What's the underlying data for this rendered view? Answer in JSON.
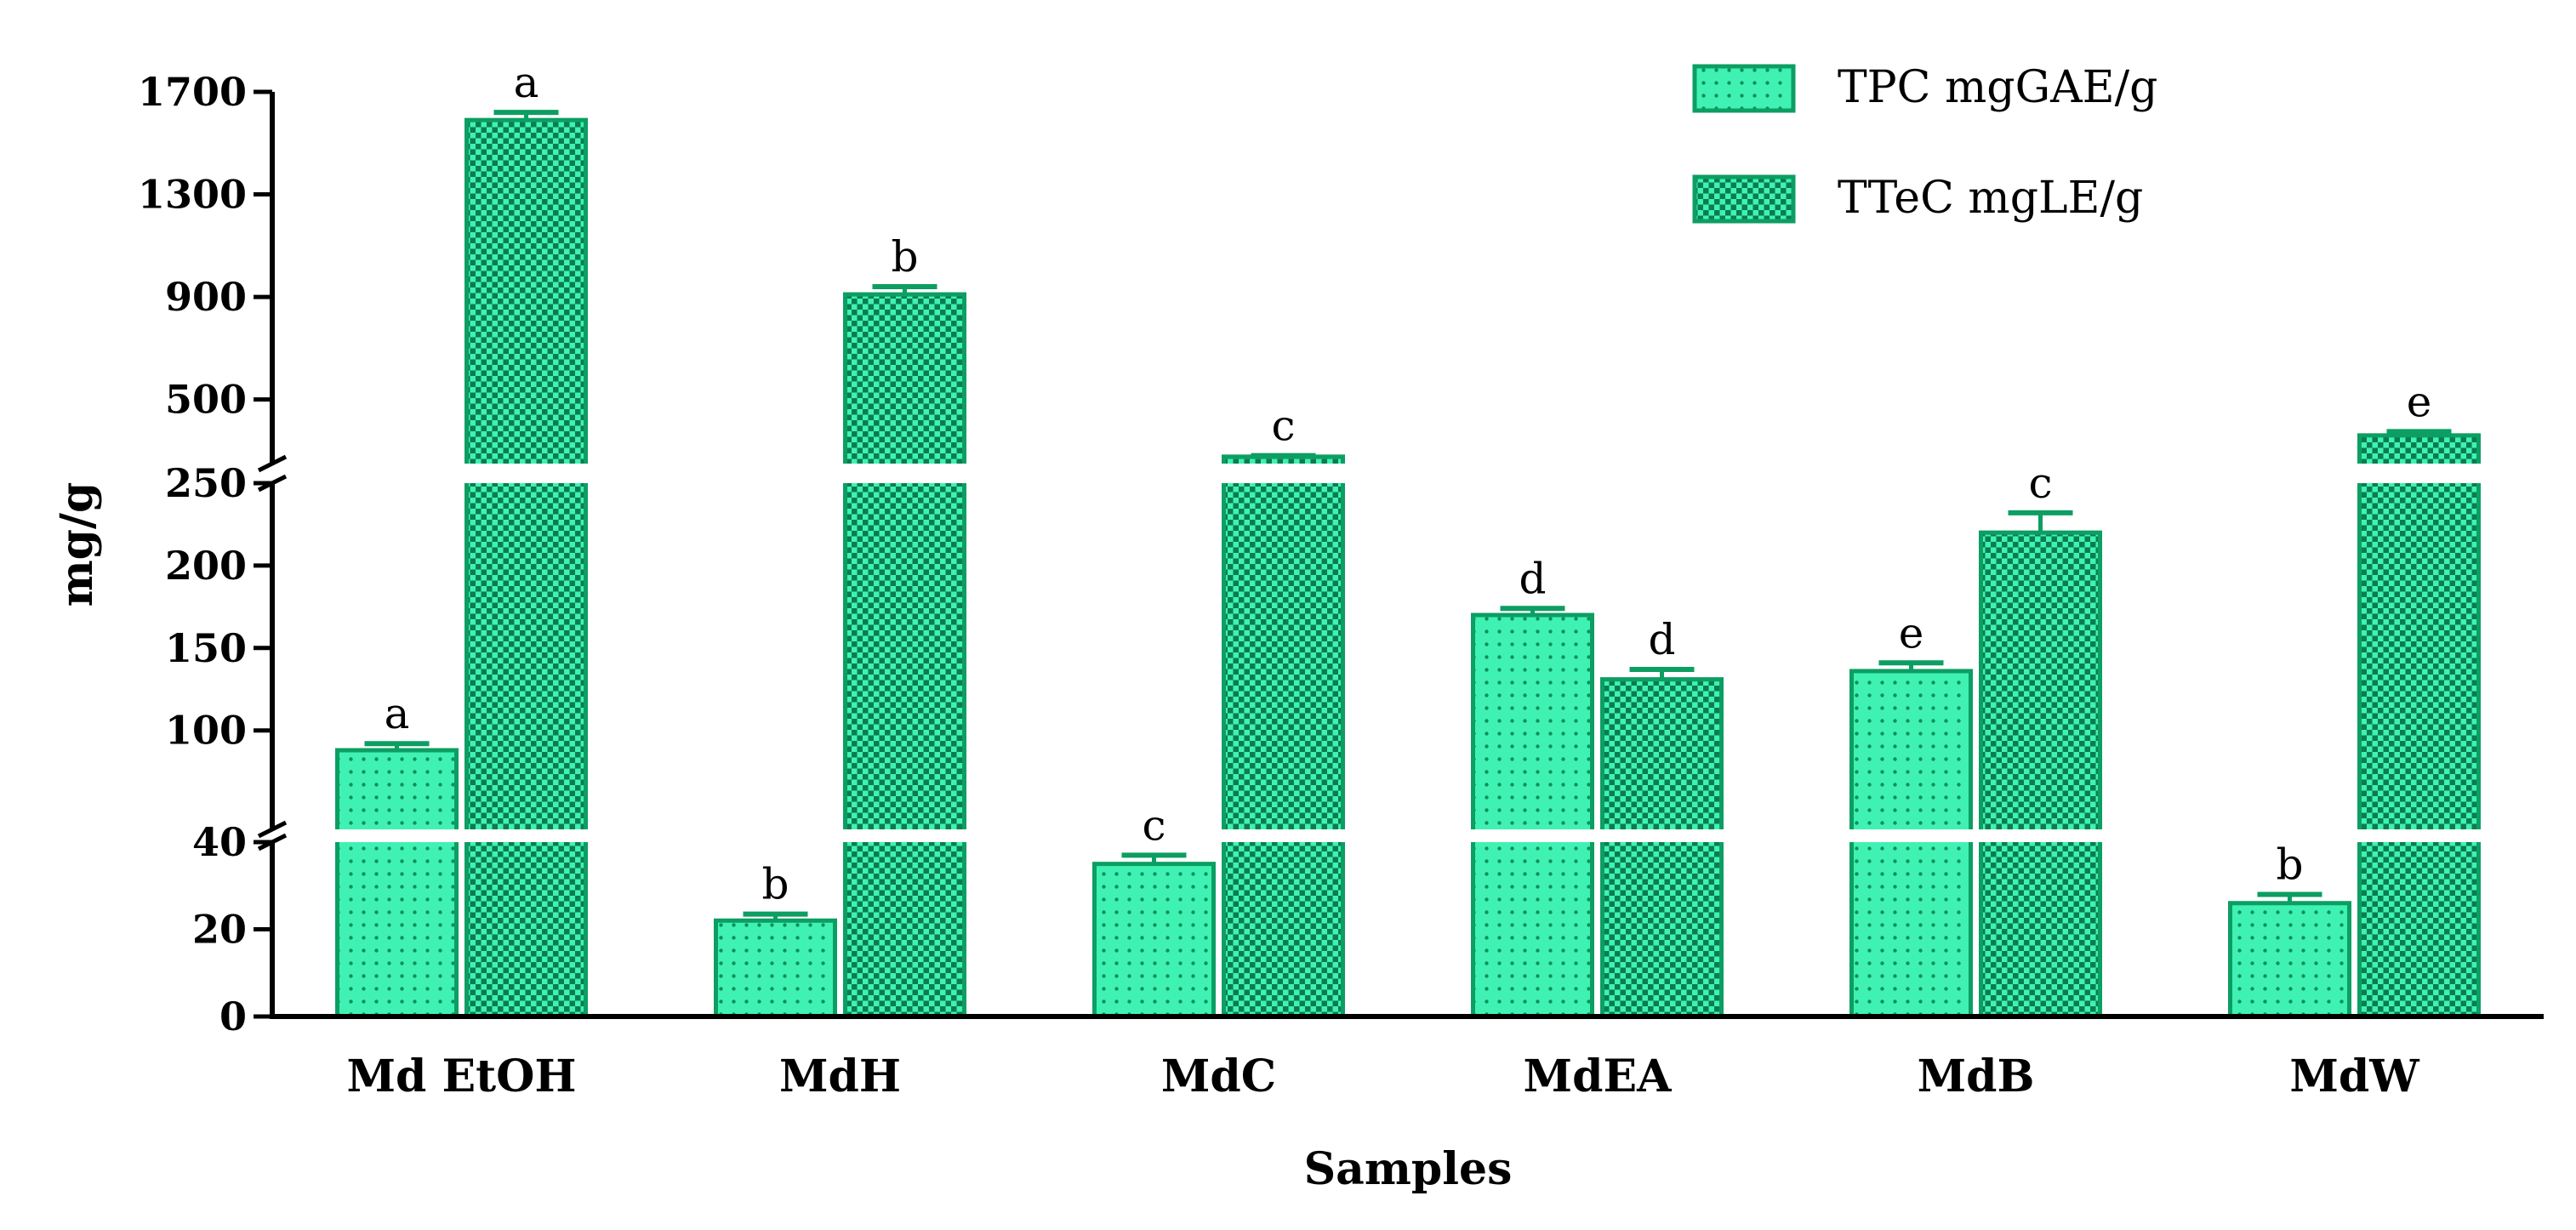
{
  "chart_data": {
    "type": "bar",
    "title": "",
    "xlabel": "Samples",
    "ylabel": "mg/g",
    "categories": [
      "Md EtOH",
      "MdH",
      "MdC",
      "MdEA",
      "MdB",
      "MdW"
    ],
    "series": [
      {
        "name": "TPC mgGAE/g",
        "values": [
          88,
          22,
          35,
          170,
          136,
          26
        ],
        "errors": [
          4,
          1.5,
          2,
          4,
          5,
          2
        ],
        "letters": [
          "a",
          "b",
          "c",
          "d",
          "e",
          "b"
        ],
        "pattern": "dots"
      },
      {
        "name": "TTeC mgLE/g",
        "values": [
          1590,
          910,
          277,
          131,
          220,
          360
        ],
        "errors": [
          30,
          30,
          4,
          6,
          12,
          15
        ],
        "letters": [
          "a",
          "b",
          "c",
          "d",
          "c",
          "e"
        ],
        "pattern": "checker"
      }
    ],
    "y_segments": [
      {
        "range": [
          0,
          40
        ],
        "ticks": [
          0,
          20,
          40
        ]
      },
      {
        "range": [
          40,
          250
        ],
        "ticks": [
          100,
          150,
          200,
          250
        ]
      },
      {
        "range": [
          250,
          1700
        ],
        "ticks": [
          500,
          900,
          1300,
          1700
        ]
      }
    ],
    "legend_position": "top-right",
    "colors": {
      "fill": "#3ff2b3",
      "stroke": "#0c9e62",
      "dots": "#0d8f5b",
      "checker": "#0a7c50"
    }
  }
}
